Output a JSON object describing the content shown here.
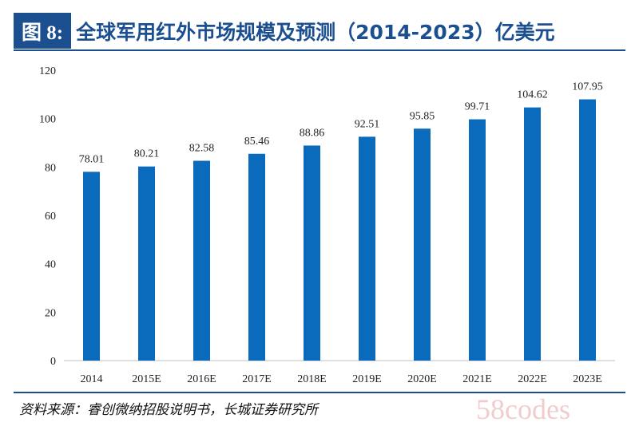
{
  "header": {
    "figure_label": "图 8:",
    "title": "全球军用红外市场规模及预测（2014-2023）亿美元"
  },
  "chart_data": {
    "type": "bar",
    "categories": [
      "2014",
      "2015E",
      "2016E",
      "2017E",
      "2018E",
      "2019E",
      "2020E",
      "2021E",
      "2022E",
      "2023E"
    ],
    "values": [
      78.01,
      80.21,
      82.58,
      85.46,
      88.86,
      92.51,
      95.85,
      99.71,
      104.62,
      107.95
    ],
    "value_labels": [
      "78.01",
      "80.21",
      "82.58",
      "85.46",
      "88.86",
      "92.51",
      "95.85",
      "99.71",
      "104.62",
      "107.95"
    ],
    "ylim": [
      0,
      120
    ],
    "yticks": [
      0,
      20,
      40,
      60,
      80,
      100,
      120
    ],
    "bar_color": "#0a6bbd",
    "grid": false,
    "legend": "none"
  },
  "footer": {
    "source": "资料来源：睿创微纳招股说明书，长城证券研究所",
    "watermark": "58codes"
  }
}
